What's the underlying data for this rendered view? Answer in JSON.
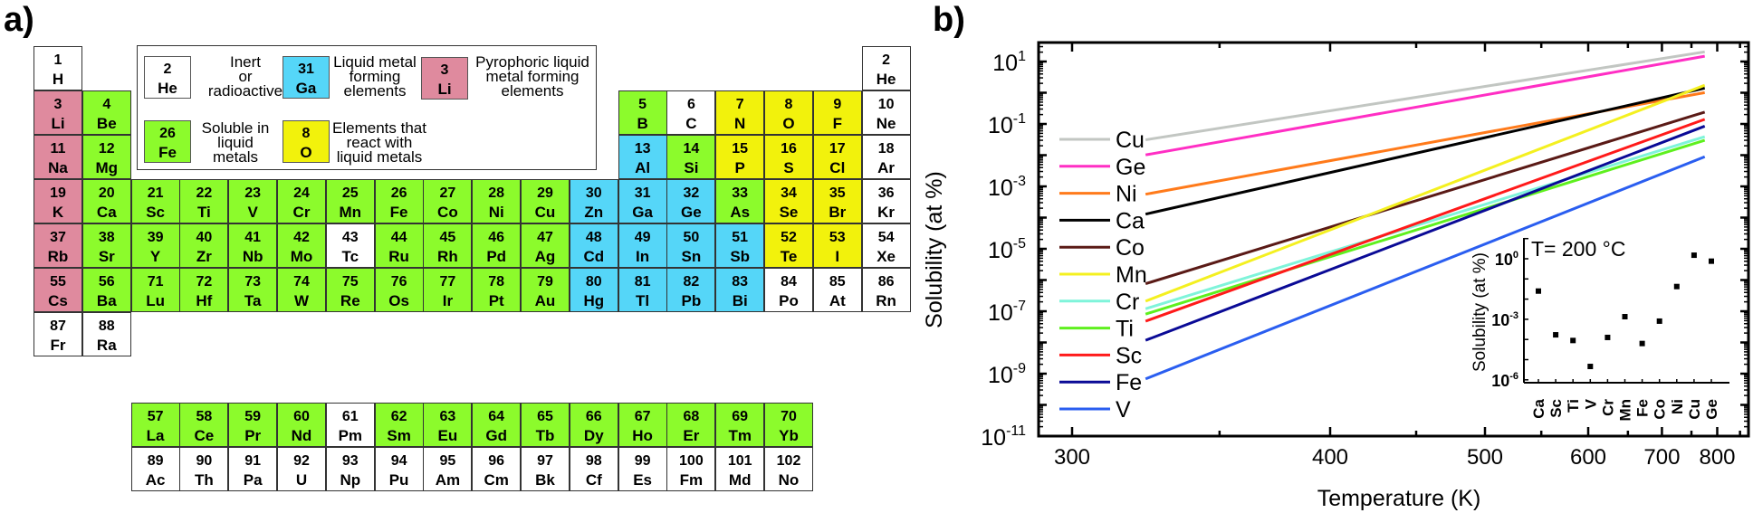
{
  "panel_a": {
    "label": "a)",
    "colors": {
      "i": "#ffffff",
      "s": "#8cfb2c",
      "l": "#55d6f8",
      "p": "#df8a9e",
      "r": "#f2f20c"
    },
    "legend": [
      {
        "number": "2",
        "symbol": "He",
        "category": "i",
        "text": "Inert\nor\nradioactive"
      },
      {
        "number": "31",
        "symbol": "Ga",
        "category": "l",
        "text": "Liquid metal\nforming\nelements"
      },
      {
        "number": "3",
        "symbol": "Li",
        "category": "p",
        "text": "Pyrophoric liquid\nmetal forming\nelements"
      },
      {
        "number": "26",
        "symbol": "Fe",
        "category": "s",
        "text": "Soluble in\nliquid\nmetals"
      },
      {
        "number": "8",
        "symbol": "O",
        "category": "r",
        "text": "Elements that\nreact with\nliquid metals"
      }
    ],
    "elements": [
      [
        1,
        "H",
        "i",
        1,
        1
      ],
      [
        2,
        "He",
        "i",
        1,
        18
      ],
      [
        3,
        "Li",
        "p",
        2,
        1
      ],
      [
        4,
        "Be",
        "s",
        2,
        2
      ],
      [
        5,
        "B",
        "s",
        2,
        13
      ],
      [
        6,
        "C",
        "i",
        2,
        14
      ],
      [
        7,
        "N",
        "r",
        2,
        15
      ],
      [
        8,
        "O",
        "r",
        2,
        16
      ],
      [
        9,
        "F",
        "r",
        2,
        17
      ],
      [
        10,
        "Ne",
        "i",
        2,
        18
      ],
      [
        11,
        "Na",
        "p",
        3,
        1
      ],
      [
        12,
        "Mg",
        "s",
        3,
        2
      ],
      [
        13,
        "Al",
        "l",
        3,
        13
      ],
      [
        14,
        "Si",
        "s",
        3,
        14
      ],
      [
        15,
        "P",
        "r",
        3,
        15
      ],
      [
        16,
        "S",
        "r",
        3,
        16
      ],
      [
        17,
        "Cl",
        "r",
        3,
        17
      ],
      [
        18,
        "Ar",
        "i",
        3,
        18
      ],
      [
        19,
        "K",
        "p",
        4,
        1
      ],
      [
        20,
        "Ca",
        "s",
        4,
        2
      ],
      [
        21,
        "Sc",
        "s",
        4,
        3
      ],
      [
        22,
        "Ti",
        "s",
        4,
        4
      ],
      [
        23,
        "V",
        "s",
        4,
        5
      ],
      [
        24,
        "Cr",
        "s",
        4,
        6
      ],
      [
        25,
        "Mn",
        "s",
        4,
        7
      ],
      [
        26,
        "Fe",
        "s",
        4,
        8
      ],
      [
        27,
        "Co",
        "s",
        4,
        9
      ],
      [
        28,
        "Ni",
        "s",
        4,
        10
      ],
      [
        29,
        "Cu",
        "s",
        4,
        11
      ],
      [
        30,
        "Zn",
        "l",
        4,
        12
      ],
      [
        31,
        "Ga",
        "l",
        4,
        13
      ],
      [
        32,
        "Ge",
        "l",
        4,
        14
      ],
      [
        33,
        "As",
        "s",
        4,
        15
      ],
      [
        34,
        "Se",
        "r",
        4,
        16
      ],
      [
        35,
        "Br",
        "r",
        4,
        17
      ],
      [
        36,
        "Kr",
        "i",
        4,
        18
      ],
      [
        37,
        "Rb",
        "p",
        5,
        1
      ],
      [
        38,
        "Sr",
        "s",
        5,
        2
      ],
      [
        39,
        "Y",
        "s",
        5,
        3
      ],
      [
        40,
        "Zr",
        "s",
        5,
        4
      ],
      [
        41,
        "Nb",
        "s",
        5,
        5
      ],
      [
        42,
        "Mo",
        "s",
        5,
        6
      ],
      [
        43,
        "Tc",
        "i",
        5,
        7
      ],
      [
        44,
        "Ru",
        "s",
        5,
        8
      ],
      [
        45,
        "Rh",
        "s",
        5,
        9
      ],
      [
        46,
        "Pd",
        "s",
        5,
        10
      ],
      [
        47,
        "Ag",
        "s",
        5,
        11
      ],
      [
        48,
        "Cd",
        "l",
        5,
        12
      ],
      [
        49,
        "In",
        "l",
        5,
        13
      ],
      [
        50,
        "Sn",
        "l",
        5,
        14
      ],
      [
        51,
        "Sb",
        "l",
        5,
        15
      ],
      [
        52,
        "Te",
        "r",
        5,
        16
      ],
      [
        53,
        "I",
        "r",
        5,
        17
      ],
      [
        54,
        "Xe",
        "i",
        5,
        18
      ],
      [
        55,
        "Cs",
        "p",
        6,
        1
      ],
      [
        56,
        "Ba",
        "s",
        6,
        2
      ],
      [
        71,
        "Lu",
        "s",
        6,
        3
      ],
      [
        72,
        "Hf",
        "s",
        6,
        4
      ],
      [
        73,
        "Ta",
        "s",
        6,
        5
      ],
      [
        74,
        "W",
        "s",
        6,
        6
      ],
      [
        75,
        "Re",
        "s",
        6,
        7
      ],
      [
        76,
        "Os",
        "s",
        6,
        8
      ],
      [
        77,
        "Ir",
        "s",
        6,
        9
      ],
      [
        78,
        "Pt",
        "s",
        6,
        10
      ],
      [
        79,
        "Au",
        "s",
        6,
        11
      ],
      [
        80,
        "Hg",
        "l",
        6,
        12
      ],
      [
        81,
        "Tl",
        "l",
        6,
        13
      ],
      [
        82,
        "Pb",
        "l",
        6,
        14
      ],
      [
        83,
        "Bi",
        "l",
        6,
        15
      ],
      [
        84,
        "Po",
        "i",
        6,
        16
      ],
      [
        85,
        "At",
        "i",
        6,
        17
      ],
      [
        86,
        "Rn",
        "i",
        6,
        18
      ],
      [
        87,
        "Fr",
        "i",
        7,
        1
      ],
      [
        88,
        "Ra",
        "i",
        7,
        2
      ],
      [
        57,
        "La",
        "s",
        8,
        3
      ],
      [
        58,
        "Ce",
        "s",
        8,
        4
      ],
      [
        59,
        "Pr",
        "s",
        8,
        5
      ],
      [
        60,
        "Nd",
        "s",
        8,
        6
      ],
      [
        61,
        "Pm",
        "i",
        8,
        7
      ],
      [
        62,
        "Sm",
        "s",
        8,
        8
      ],
      [
        63,
        "Eu",
        "s",
        8,
        9
      ],
      [
        64,
        "Gd",
        "s",
        8,
        10
      ],
      [
        65,
        "Tb",
        "s",
        8,
        11
      ],
      [
        66,
        "Dy",
        "s",
        8,
        12
      ],
      [
        67,
        "Ho",
        "s",
        8,
        13
      ],
      [
        68,
        "Er",
        "s",
        8,
        14
      ],
      [
        69,
        "Tm",
        "s",
        8,
        15
      ],
      [
        70,
        "Yb",
        "s",
        8,
        16
      ],
      [
        89,
        "Ac",
        "i",
        9,
        3
      ],
      [
        90,
        "Th",
        "i",
        9,
        4
      ],
      [
        91,
        "Pa",
        "i",
        9,
        5
      ],
      [
        92,
        "U",
        "i",
        9,
        6
      ],
      [
        93,
        "Np",
        "i",
        9,
        7
      ],
      [
        94,
        "Pu",
        "i",
        9,
        8
      ],
      [
        95,
        "Am",
        "i",
        9,
        9
      ],
      [
        96,
        "Cm",
        "i",
        9,
        10
      ],
      [
        97,
        "Bk",
        "i",
        9,
        11
      ],
      [
        98,
        "Cf",
        "i",
        9,
        12
      ],
      [
        99,
        "Es",
        "i",
        9,
        13
      ],
      [
        100,
        "Fm",
        "i",
        9,
        14
      ],
      [
        101,
        "Md",
        "i",
        9,
        15
      ],
      [
        102,
        "No",
        "i",
        9,
        16
      ]
    ]
  },
  "panel_b": {
    "label": "b)"
  },
  "chart_data": [
    {
      "type": "line",
      "title": "",
      "xlabel": "Temperature (K)",
      "ylabel": "Solubility (at %)",
      "xscale": "reciprocal (1/T)",
      "yscale": "log",
      "xlim": [
        290,
        870
      ],
      "ylim": [
        1e-11,
        38
      ],
      "xticks": [
        300,
        400,
        500,
        600,
        700,
        800
      ],
      "ytick_base": "10",
      "ytick_exponents": [
        1,
        -1,
        -3,
        -5,
        -7,
        -9,
        -11
      ],
      "legend_position": "left",
      "x": [
        323,
        775
      ],
      "series": [
        {
          "name": "Cu",
          "color": "#c2c6c2",
          "values": [
            0.031,
            20.4
          ]
        },
        {
          "name": "Ge",
          "color": "#ff2ec4",
          "values": [
            0.0102,
            14.8
          ]
        },
        {
          "name": "Ni",
          "color": "#ff7a1a",
          "values": [
            0.00056,
            1.01
          ]
        },
        {
          "name": "Ca",
          "color": "#000000",
          "values": [
            0.000129,
            1.41
          ]
        },
        {
          "name": "Co",
          "color": "#5a1a16",
          "values": [
            7.6e-07,
            0.24
          ]
        },
        {
          "name": "Mn",
          "color": "#f4f020",
          "values": [
            2.1e-07,
            1.74
          ]
        },
        {
          "name": "Cr",
          "color": "#7ff4da",
          "values": [
            1.2e-07,
            0.039
          ]
        },
        {
          "name": "Ti",
          "color": "#5ef01e",
          "values": [
            8.1e-08,
            0.03
          ]
        },
        {
          "name": "Sc",
          "color": "#ff1a1a",
          "values": [
            4.8e-08,
            0.141
          ]
        },
        {
          "name": "Fe",
          "color": "#0a0a96",
          "values": [
            1.17e-08,
            0.085
          ]
        },
        {
          "name": "V",
          "color": "#2a5ef0",
          "values": [
            6.8e-10,
            0.0089
          ]
        }
      ]
    },
    {
      "type": "scatter",
      "title": "T= 200 °C",
      "xlabel": "",
      "ylabel": "Solubility (at %)",
      "yscale": "log",
      "ylim": [
        8e-07,
        10
      ],
      "ytick_base": "10",
      "ytick_exponents": [
        0,
        -3,
        -6
      ],
      "categories": [
        "Ca",
        "Sc",
        "Ti",
        "V",
        "Cr",
        "Mn",
        "Fe",
        "Co",
        "Ni",
        "Cu",
        "Ge"
      ],
      "values": [
        0.025,
        0.00017,
        8.9e-05,
        4.6e-06,
        0.000126,
        0.00135,
        6.3e-05,
        0.00081,
        0.042,
        1.5,
        0.76
      ]
    }
  ]
}
